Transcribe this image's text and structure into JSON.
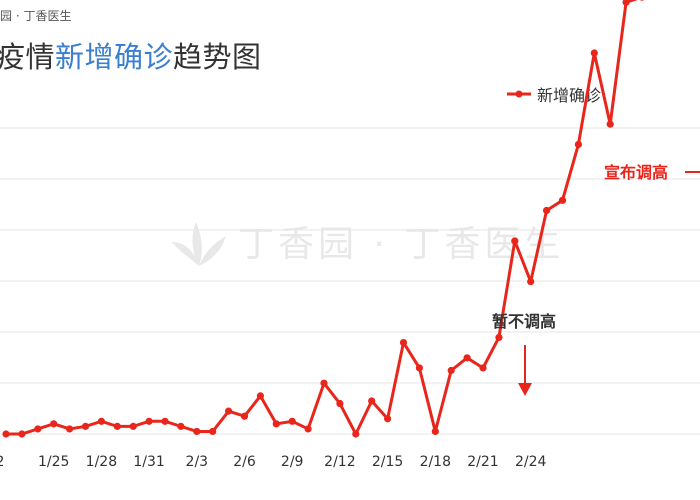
{
  "header": {
    "source_text": "园 · 丁香医生",
    "title_prefix": "疫情",
    "title_highlight": "新增确诊",
    "title_suffix": "趋势图"
  },
  "watermark": {
    "text": "丁香园 · 丁香医生"
  },
  "colors": {
    "series": "#e8261c",
    "highlight": "#3a7fd0",
    "grid": "#e6e6e6"
  },
  "chart_data": {
    "type": "line",
    "legend_position": "top-right",
    "grid": true,
    "x_tick_labels": [
      "2",
      "1/25",
      "1/28",
      "1/31",
      "2/3",
      "2/6",
      "2/9",
      "2/12",
      "2/15",
      "2/18",
      "2/21",
      "2/24"
    ],
    "series": [
      {
        "name": "新增确诊",
        "values": [
          0,
          0,
          0.1,
          0.2,
          0.1,
          0.15,
          0.25,
          0.15,
          0.15,
          0.25,
          0.25,
          0.15,
          0.05,
          0.05,
          0.45,
          0.35,
          0.75,
          0.2,
          0.25,
          0.1,
          1.0,
          0.6,
          0.0,
          0.65,
          0.3,
          1.8,
          1.3,
          0.05,
          1.25,
          1.5,
          1.3,
          1.9,
          3.8,
          3.0,
          4.4,
          4.6,
          5.7,
          7.5,
          6.1,
          8.5,
          8.6,
          9.5,
          11.0
        ]
      }
    ],
    "annotations": [
      {
        "text": "暂不调高"
      },
      {
        "text": "宣布调高"
      }
    ]
  }
}
